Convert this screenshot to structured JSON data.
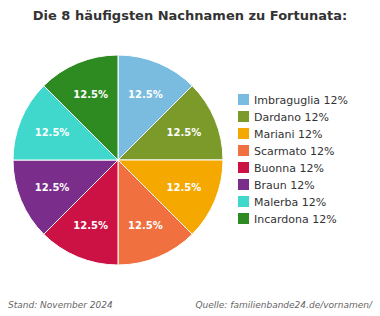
{
  "chart_data": {
    "type": "pie",
    "title": "Die 8 häufigsten Nachnamen zu Fortunata:",
    "categories": [
      "Imbraguglia 12%",
      "Dardano 12%",
      "Mariani 12%",
      "Scarmato 12%",
      "Buonna 12%",
      "Braun 12%",
      "Malerba 12%",
      "Incardona 12%"
    ],
    "values": [
      12.5,
      12.5,
      12.5,
      12.5,
      12.5,
      12.5,
      12.5,
      12.5
    ],
    "value_labels": [
      "12.5%",
      "12.5%",
      "12.5%",
      "12.5%",
      "12.5%",
      "12.5%",
      "12.5%",
      "12.5%"
    ],
    "colors": [
      "#7ABCE0",
      "#7B9A2A",
      "#F5A800",
      "#F07040",
      "#CC1144",
      "#7B2D8B",
      "#40D8CC",
      "#2E8B22"
    ],
    "data_labels": true,
    "legend": "right",
    "annotations": [
      "Stand: November 2024",
      "Quelle: familienbande24.de/vornamen/"
    ]
  }
}
